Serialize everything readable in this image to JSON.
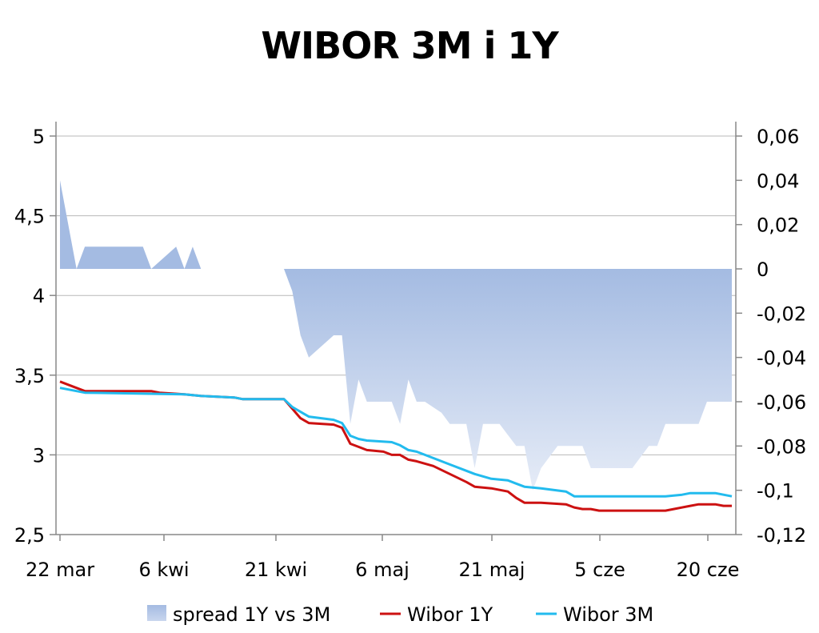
{
  "chart_data": {
    "type": "line",
    "title": "WIBOR 3M i 1Y",
    "x_labels": [
      "22 mar",
      "6 kwi",
      "21 kwi",
      "6 maj",
      "21 maj",
      "5 cze",
      "20 cze"
    ],
    "ylim_left": [
      2.5,
      5
    ],
    "ylim_right": [
      -0.12,
      0.06
    ],
    "left_ticks": [
      "2,5",
      "3",
      "3,5",
      "4",
      "4,5",
      "5"
    ],
    "right_ticks": [
      "-0,12",
      "-0,1",
      "-0,08",
      "-0,06",
      "-0,04",
      "-0,02",
      "0",
      "0,02",
      "0,04",
      "0,06"
    ],
    "grid": true,
    "legend_position": "bottom",
    "series": [
      {
        "name": "spread 1Y vs 3M",
        "axis": "right",
        "kind": "area",
        "color": "#a4bbe2",
        "segments": [
          [
            [
              0,
              0.04
            ],
            [
              2,
              0.0
            ],
            [
              3,
              0.01
            ],
            [
              10,
              0.01
            ],
            [
              11,
              0.0
            ],
            [
              14,
              0.01
            ],
            [
              15,
              0.0
            ],
            [
              16,
              0.01
            ],
            [
              17,
              0.0
            ]
          ],
          [
            [
              27,
              0.0
            ],
            [
              28,
              -0.01
            ],
            [
              29,
              -0.03
            ],
            [
              30,
              -0.04
            ],
            [
              33,
              -0.03
            ],
            [
              34,
              -0.03
            ],
            [
              35,
              -0.07
            ],
            [
              36,
              -0.05
            ],
            [
              37,
              -0.06
            ],
            [
              38,
              -0.06
            ],
            [
              40,
              -0.06
            ],
            [
              41,
              -0.07
            ],
            [
              42,
              -0.05
            ],
            [
              43,
              -0.06
            ],
            [
              44,
              -0.06
            ],
            [
              46,
              -0.065
            ],
            [
              47,
              -0.07
            ],
            [
              49,
              -0.07
            ],
            [
              50,
              -0.09
            ],
            [
              51,
              -0.07
            ],
            [
              53,
              -0.07
            ],
            [
              55,
              -0.08
            ],
            [
              56,
              -0.08
            ],
            [
              57,
              -0.1
            ],
            [
              58,
              -0.09
            ],
            [
              60,
              -0.08
            ],
            [
              63,
              -0.08
            ],
            [
              64,
              -0.09
            ],
            [
              66,
              -0.09
            ],
            [
              69,
              -0.09
            ],
            [
              71,
              -0.08
            ],
            [
              72,
              -0.08
            ],
            [
              73,
              -0.07
            ],
            [
              77,
              -0.07
            ],
            [
              78,
              -0.06
            ],
            [
              81,
              -0.06
            ]
          ]
        ]
      },
      {
        "name": "Wibor 1Y",
        "axis": "left",
        "kind": "line",
        "color": "#cc1111",
        "points": [
          [
            0,
            3.46
          ],
          [
            1,
            3.44
          ],
          [
            3,
            3.4
          ],
          [
            11,
            3.4
          ],
          [
            12,
            3.39
          ],
          [
            15,
            3.38
          ],
          [
            17,
            3.37
          ],
          [
            21,
            3.36
          ],
          [
            22,
            3.35
          ],
          [
            27,
            3.35
          ],
          [
            28,
            3.29
          ],
          [
            29,
            3.23
          ],
          [
            30,
            3.2
          ],
          [
            33,
            3.19
          ],
          [
            34,
            3.17
          ],
          [
            35,
            3.07
          ],
          [
            36,
            3.05
          ],
          [
            37,
            3.03
          ],
          [
            39,
            3.02
          ],
          [
            40,
            3.0
          ],
          [
            41,
            3.0
          ],
          [
            42,
            2.97
          ],
          [
            43,
            2.96
          ],
          [
            45,
            2.93
          ],
          [
            47,
            2.88
          ],
          [
            49,
            2.83
          ],
          [
            50,
            2.8
          ],
          [
            52,
            2.79
          ],
          [
            54,
            2.77
          ],
          [
            55,
            2.73
          ],
          [
            56,
            2.7
          ],
          [
            58,
            2.7
          ],
          [
            61,
            2.69
          ],
          [
            62,
            2.67
          ],
          [
            63,
            2.66
          ],
          [
            64,
            2.66
          ],
          [
            65,
            2.65
          ],
          [
            73,
            2.65
          ],
          [
            74,
            2.66
          ],
          [
            76,
            2.68
          ],
          [
            77,
            2.69
          ],
          [
            79,
            2.69
          ],
          [
            80,
            2.68
          ],
          [
            81,
            2.68
          ]
        ]
      },
      {
        "name": "Wibor 3M",
        "axis": "left",
        "kind": "line",
        "color": "#22bbee",
        "points": [
          [
            0,
            3.42
          ],
          [
            1,
            3.41
          ],
          [
            3,
            3.39
          ],
          [
            15,
            3.38
          ],
          [
            17,
            3.37
          ],
          [
            21,
            3.36
          ],
          [
            22,
            3.35
          ],
          [
            27,
            3.35
          ],
          [
            28,
            3.3
          ],
          [
            29,
            3.27
          ],
          [
            30,
            3.24
          ],
          [
            33,
            3.22
          ],
          [
            34,
            3.2
          ],
          [
            35,
            3.12
          ],
          [
            36,
            3.1
          ],
          [
            37,
            3.09
          ],
          [
            40,
            3.08
          ],
          [
            41,
            3.06
          ],
          [
            42,
            3.03
          ],
          [
            43,
            3.02
          ],
          [
            45,
            2.98
          ],
          [
            47,
            2.94
          ],
          [
            49,
            2.9
          ],
          [
            50,
            2.88
          ],
          [
            52,
            2.85
          ],
          [
            54,
            2.84
          ],
          [
            55,
            2.82
          ],
          [
            56,
            2.8
          ],
          [
            58,
            2.79
          ],
          [
            61,
            2.77
          ],
          [
            62,
            2.74
          ],
          [
            63,
            2.74
          ],
          [
            70,
            2.74
          ],
          [
            73,
            2.74
          ],
          [
            75,
            2.75
          ],
          [
            76,
            2.76
          ],
          [
            79,
            2.76
          ],
          [
            80,
            2.75
          ],
          [
            81,
            2.74
          ]
        ]
      }
    ]
  }
}
